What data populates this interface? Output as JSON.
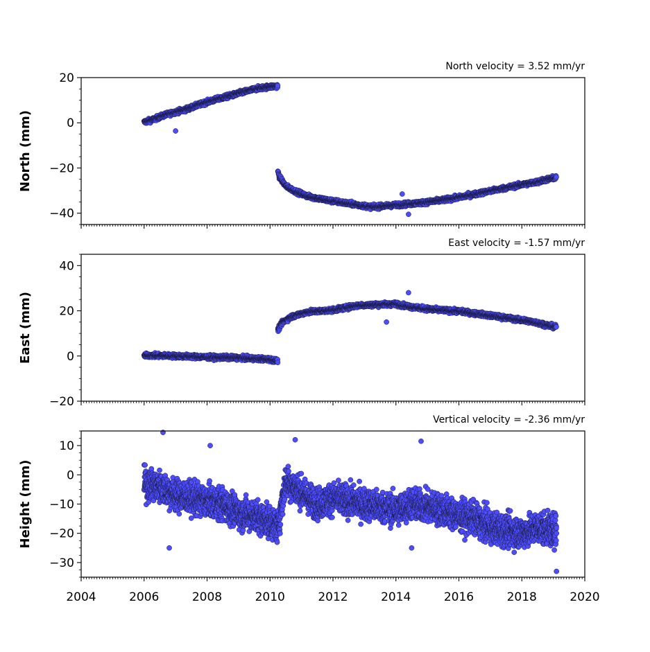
{
  "chart_data": [
    {
      "type": "scatter",
      "annotation": "North velocity = 3.52 mm/yr",
      "ylabel": "North (mm)",
      "xlim": [
        2004,
        2020
      ],
      "ylim": [
        -45,
        20
      ],
      "yticks": [
        20,
        0,
        -20,
        -40
      ],
      "marker_color": "#4d4dff",
      "series": [
        {
          "segment": [
            2006.0,
            2010.25
          ],
          "points": [
            [
              2006.0,
              0.3
            ],
            [
              2006.3,
              1.5
            ],
            [
              2006.6,
              3.2
            ],
            [
              2007.0,
              4.8
            ],
            [
              2007.3,
              5.8
            ],
            [
              2007.7,
              7.8
            ],
            [
              2008.0,
              9.2
            ],
            [
              2008.4,
              10.8
            ],
            [
              2008.8,
              12.2
            ],
            [
              2009.2,
              13.8
            ],
            [
              2009.6,
              15.2
            ],
            [
              2010.0,
              16.0
            ],
            [
              2010.25,
              16.2
            ]
          ]
        },
        {
          "segment": [
            2010.25,
            2019.1
          ],
          "points": [
            [
              2010.25,
              -21.5
            ],
            [
              2010.3,
              -24.0
            ],
            [
              2010.5,
              -28.0
            ],
            [
              2010.8,
              -30.3
            ],
            [
              2011.2,
              -32.5
            ],
            [
              2011.8,
              -34.2
            ],
            [
              2012.4,
              -35.5
            ],
            [
              2013.0,
              -36.8
            ],
            [
              2013.3,
              -37.3
            ],
            [
              2013.8,
              -36.6
            ],
            [
              2014.3,
              -36.0
            ],
            [
              2014.8,
              -35.4
            ],
            [
              2015.4,
              -34.4
            ],
            [
              2016.0,
              -33.0
            ],
            [
              2016.6,
              -31.3
            ],
            [
              2017.2,
              -29.6
            ],
            [
              2017.8,
              -27.9
            ],
            [
              2018.4,
              -26.4
            ],
            [
              2019.0,
              -24.4
            ]
          ]
        }
      ],
      "outliers": [
        [
          2007.0,
          -3.6
        ],
        [
          2014.2,
          -31.5
        ],
        [
          2014.4,
          -40.5
        ]
      ]
    },
    {
      "type": "scatter",
      "annotation": "East velocity = -1.57 mm/yr",
      "ylabel": "East (mm)",
      "xlim": [
        2004,
        2020
      ],
      "ylim": [
        -20,
        45
      ],
      "yticks": [
        40,
        20,
        0,
        -20
      ],
      "marker_color": "#4d4dff",
      "series": [
        {
          "segment": [
            2006.0,
            2010.25
          ],
          "points": [
            [
              2006.0,
              0.3
            ],
            [
              2007.0,
              0.0
            ],
            [
              2008.0,
              -0.5
            ],
            [
              2009.0,
              -0.8
            ],
            [
              2010.0,
              -1.5
            ],
            [
              2010.25,
              -2.2
            ]
          ]
        },
        {
          "segment": [
            2010.25,
            2019.1
          ],
          "points": [
            [
              2010.25,
              11.5
            ],
            [
              2010.4,
              15.0
            ],
            [
              2010.7,
              17.5
            ],
            [
              2011.2,
              19.5
            ],
            [
              2012.0,
              20.3
            ],
            [
              2012.8,
              22.4
            ],
            [
              2013.5,
              22.8
            ],
            [
              2014.0,
              23.0
            ],
            [
              2014.6,
              21.5
            ],
            [
              2015.2,
              20.5
            ],
            [
              2016.0,
              19.8
            ],
            [
              2016.8,
              18.3
            ],
            [
              2017.6,
              16.7
            ],
            [
              2018.4,
              15.0
            ],
            [
              2019.0,
              13.0
            ]
          ]
        }
      ],
      "outliers": [
        [
          2014.4,
          28.0
        ],
        [
          2013.7,
          15.0
        ]
      ]
    },
    {
      "type": "scatter",
      "annotation": "Vertical velocity = -2.36 mm/yr",
      "ylabel": "Height (mm)",
      "xlim": [
        2004,
        2020
      ],
      "ylim": [
        -35,
        15
      ],
      "yticks": [
        10,
        0,
        -10,
        -20,
        -30
      ],
      "marker_color": "#4d4dff",
      "xticks": [
        2004,
        2006,
        2008,
        2010,
        2012,
        2014,
        2016,
        2018,
        2020
      ],
      "series": [
        {
          "segment": [
            2006.0,
            2019.1
          ],
          "points": [
            [
              2006.0,
              -3
            ],
            [
              2006.5,
              -4
            ],
            [
              2007.0,
              -7
            ],
            [
              2007.5,
              -8
            ],
            [
              2008.0,
              -9
            ],
            [
              2008.5,
              -10
            ],
            [
              2009.0,
              -13
            ],
            [
              2009.5,
              -14
            ],
            [
              2010.0,
              -16
            ],
            [
              2010.25,
              -18
            ],
            [
              2010.5,
              -2
            ],
            [
              2011.0,
              -6
            ],
            [
              2011.5,
              -10
            ],
            [
              2012.0,
              -8
            ],
            [
              2012.5,
              -9
            ],
            [
              2013.0,
              -10
            ],
            [
              2013.5,
              -11
            ],
            [
              2014.0,
              -12
            ],
            [
              2014.5,
              -10
            ],
            [
              2015.0,
              -11
            ],
            [
              2015.5,
              -12
            ],
            [
              2016.0,
              -14
            ],
            [
              2016.5,
              -15
            ],
            [
              2017.0,
              -18
            ],
            [
              2017.5,
              -19
            ],
            [
              2018.0,
              -20
            ],
            [
              2018.5,
              -18
            ],
            [
              2019.0,
              -19
            ]
          ]
        }
      ],
      "outliers": [
        [
          2006.6,
          14.5
        ],
        [
          2008.1,
          10.0
        ],
        [
          2010.8,
          12.0
        ],
        [
          2014.8,
          11.5
        ],
        [
          2006.8,
          -25
        ],
        [
          2014.5,
          -25
        ],
        [
          2019.1,
          -33
        ]
      ]
    }
  ]
}
